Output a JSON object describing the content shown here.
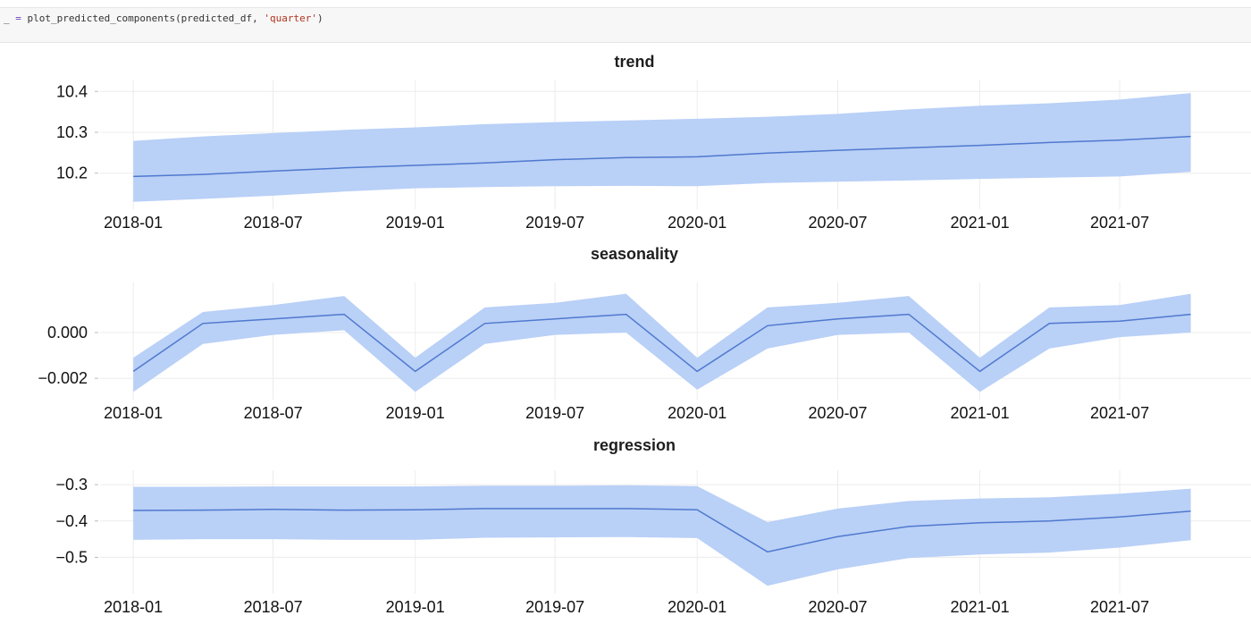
{
  "code_cell": {
    "prefix": "_",
    "operator": "=",
    "call": "plot_predicted_components(predicted_df, ",
    "argument": "'quarter'",
    "suffix": ")"
  },
  "colors": {
    "band": "#b9d0f7",
    "line": "#4f79cf"
  },
  "chart_data": [
    {
      "type": "line",
      "title": "trend",
      "xlabel": "",
      "ylabel": "",
      "x": [
        "2018-01-01",
        "2018-04-01",
        "2018-07-01",
        "2018-10-01",
        "2019-01-01",
        "2019-04-01",
        "2019-07-01",
        "2019-10-01",
        "2020-01-01",
        "2020-04-01",
        "2020-07-01",
        "2020-10-01",
        "2021-01-01",
        "2021-04-01",
        "2021-07-01",
        "2021-10-01"
      ],
      "series": [
        {
          "values": [
            10.192,
            10.197,
            10.205,
            10.213,
            10.219,
            10.225,
            10.233,
            10.238,
            10.24,
            10.249,
            10.256,
            10.262,
            10.268,
            10.275,
            10.281,
            10.29
          ],
          "lower": [
            10.13,
            10.137,
            10.145,
            10.155,
            10.163,
            10.166,
            10.168,
            10.169,
            10.168,
            10.176,
            10.179,
            10.182,
            10.186,
            10.189,
            10.192,
            10.203
          ],
          "upper": [
            10.279,
            10.29,
            10.298,
            10.306,
            10.312,
            10.32,
            10.325,
            10.329,
            10.333,
            10.338,
            10.345,
            10.356,
            10.365,
            10.371,
            10.38,
            10.396
          ]
        }
      ],
      "xlim": [
        "2017-11-19",
        "2021-12-18"
      ],
      "ylim": [
        10.125,
        10.405
      ],
      "yticks": [
        10.2,
        10.3,
        10.4
      ],
      "ytick_labels": [
        "10.2",
        "10.3",
        "10.4"
      ],
      "xticks": [
        "2018-01-01",
        "2018-07-01",
        "2019-01-01",
        "2019-07-01",
        "2020-01-01",
        "2020-07-01",
        "2021-01-01",
        "2021-07-01"
      ],
      "xtick_labels": [
        "2018-01",
        "2018-07",
        "2019-01",
        "2019-07",
        "2020-01",
        "2020-07",
        "2021-01",
        "2021-07"
      ],
      "grid": true
    },
    {
      "type": "line",
      "title": "seasonality",
      "xlabel": "",
      "ylabel": "",
      "x": [
        "2018-01-01",
        "2018-04-01",
        "2018-07-01",
        "2018-10-01",
        "2019-01-01",
        "2019-04-01",
        "2019-07-01",
        "2019-10-01",
        "2020-01-01",
        "2020-04-01",
        "2020-07-01",
        "2020-10-01",
        "2021-01-01",
        "2021-04-01",
        "2021-07-01",
        "2021-10-01"
      ],
      "series": [
        {
          "values": [
            -0.0017,
            0.0004,
            0.0006,
            0.0008,
            -0.0017,
            0.0004,
            0.0006,
            0.0008,
            -0.0017,
            0.0003,
            0.0006,
            0.0008,
            -0.0017,
            0.0004,
            0.0005,
            0.0008
          ],
          "lower": [
            -0.0026,
            -0.0005,
            -0.0001,
            0.0001,
            -0.0026,
            -0.0005,
            -0.0001,
            0.0,
            -0.0025,
            -0.0007,
            -0.0001,
            0.0,
            -0.0026,
            -0.0007,
            -0.0002,
            0.0
          ],
          "upper": [
            -0.0011,
            0.0009,
            0.0012,
            0.0016,
            -0.0011,
            0.0011,
            0.0013,
            0.0017,
            -0.0011,
            0.0011,
            0.0013,
            0.0016,
            -0.0011,
            0.0011,
            0.0012,
            0.0017
          ]
        }
      ],
      "xlim": [
        "2017-11-19",
        "2021-12-18"
      ],
      "ylim": [
        -0.0027,
        0.0018
      ],
      "yticks": [
        -0.002,
        0.0
      ],
      "ytick_labels": [
        "−0.002",
        "0.000"
      ],
      "xticks": [
        "2018-01-01",
        "2018-07-01",
        "2019-01-01",
        "2019-07-01",
        "2020-01-01",
        "2020-07-01",
        "2021-01-01",
        "2021-07-01"
      ],
      "xtick_labels": [
        "2018-01",
        "2018-07",
        "2019-01",
        "2019-07",
        "2020-01",
        "2020-07",
        "2021-01",
        "2021-07"
      ],
      "grid": true
    },
    {
      "type": "line",
      "title": "regression",
      "xlabel": "",
      "ylabel": "",
      "x": [
        "2018-01-01",
        "2018-04-01",
        "2018-07-01",
        "2018-10-01",
        "2019-01-01",
        "2019-04-01",
        "2019-07-01",
        "2019-10-01",
        "2020-01-01",
        "2020-04-01",
        "2020-07-01",
        "2020-10-01",
        "2021-01-01",
        "2021-04-01",
        "2021-07-01",
        "2021-10-01"
      ],
      "series": [
        {
          "values": [
            -0.371,
            -0.37,
            -0.368,
            -0.37,
            -0.369,
            -0.366,
            -0.366,
            -0.366,
            -0.369,
            -0.485,
            -0.443,
            -0.415,
            -0.405,
            -0.4,
            -0.389,
            -0.373
          ],
          "lower": [
            -0.452,
            -0.45,
            -0.45,
            -0.452,
            -0.452,
            -0.446,
            -0.445,
            -0.444,
            -0.447,
            -0.578,
            -0.533,
            -0.502,
            -0.492,
            -0.487,
            -0.473,
            -0.453
          ],
          "upper": [
            -0.306,
            -0.306,
            -0.305,
            -0.305,
            -0.305,
            -0.303,
            -0.303,
            -0.302,
            -0.304,
            -0.403,
            -0.366,
            -0.345,
            -0.338,
            -0.335,
            -0.325,
            -0.311
          ]
        }
      ],
      "xlim": [
        "2017-11-19",
        "2021-12-18"
      ],
      "ylim": [
        -0.585,
        -0.285
      ],
      "yticks": [
        -0.5,
        -0.4,
        -0.3
      ],
      "ytick_labels": [
        "−0.5",
        "−0.4",
        "−0.3"
      ],
      "xticks": [
        "2018-01-01",
        "2018-07-01",
        "2019-01-01",
        "2019-07-01",
        "2020-01-01",
        "2020-07-01",
        "2021-01-01",
        "2021-07-01"
      ],
      "xtick_labels": [
        "2018-01",
        "2018-07",
        "2019-01",
        "2019-07",
        "2020-01",
        "2020-07",
        "2021-01",
        "2021-07"
      ],
      "grid": true
    }
  ]
}
